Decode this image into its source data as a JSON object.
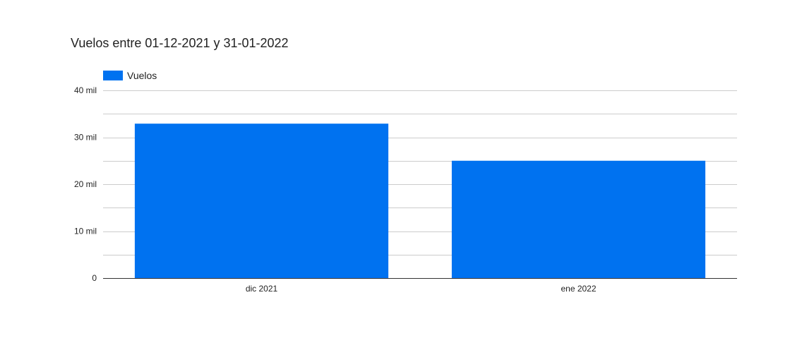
{
  "colors": {
    "series": "#0072F0",
    "grid": "#CCCCCC",
    "axis": "#333333",
    "text": "#222222"
  },
  "chart_data": {
    "type": "bar",
    "title": "Vuelos entre 01-12-2021 y 31-01-2022",
    "xlabel": "",
    "ylabel": "",
    "categories": [
      "dic 2021",
      "ene 2022"
    ],
    "series": [
      {
        "name": "Vuelos",
        "values": [
          32900,
          25000
        ]
      }
    ],
    "ylim": [
      0,
      40000
    ],
    "yticks": [
      0,
      10000,
      20000,
      30000,
      40000
    ],
    "ytick_labels": [
      "0",
      "10 mil",
      "20 mil",
      "30 mil",
      "40 mil"
    ],
    "minor_gridlines": true,
    "grid": true,
    "legend_position": "top-left"
  }
}
